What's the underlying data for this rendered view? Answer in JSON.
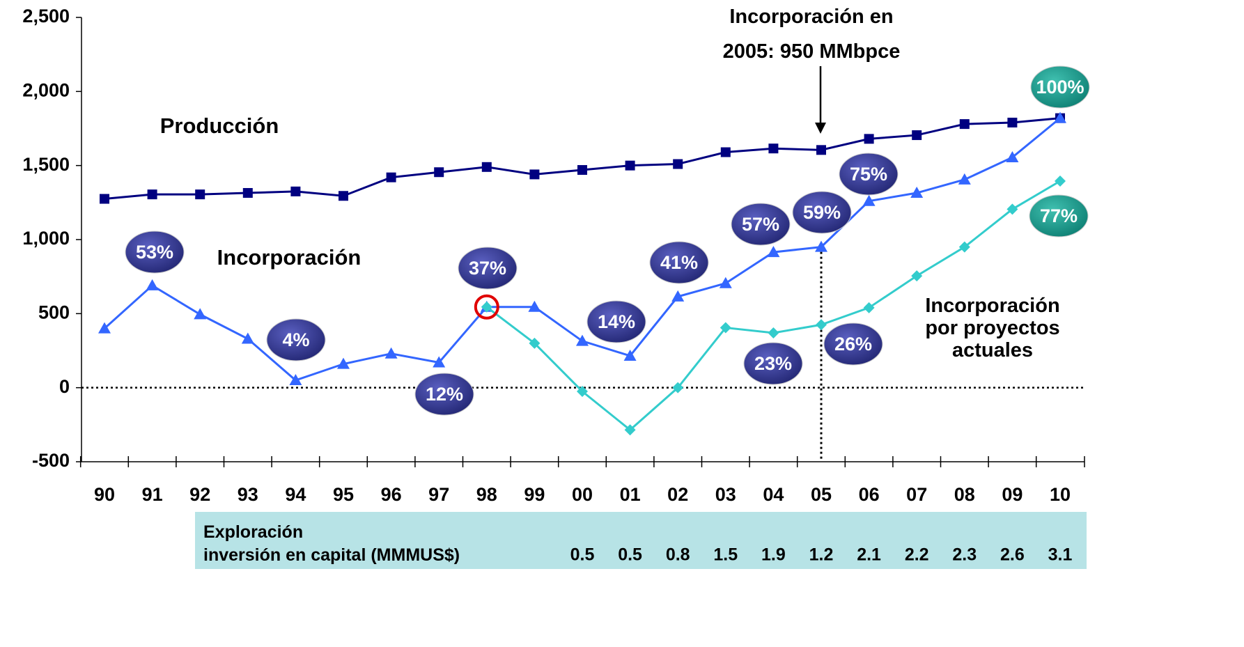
{
  "chart_data": {
    "type": "line",
    "categories": [
      "90",
      "91",
      "92",
      "93",
      "94",
      "95",
      "96",
      "97",
      "98",
      "99",
      "00",
      "01",
      "02",
      "03",
      "04",
      "05",
      "06",
      "07",
      "08",
      "09",
      "10"
    ],
    "ylim": [
      -500,
      2500
    ],
    "yticks": [
      -500,
      0,
      500,
      {
        "value": 1000,
        "label": "1,000"
      },
      {
        "value": 1500,
        "label": "1,500"
      },
      {
        "value": 2000,
        "label": "2,000"
      },
      {
        "value": 2500,
        "label": "2,500"
      }
    ],
    "series": [
      {
        "name": "Producción",
        "color": "#000080",
        "marker": "square",
        "values": [
          1275,
          1305,
          1305,
          1315,
          1325,
          1295,
          1420,
          1455,
          1490,
          1440,
          1470,
          1500,
          1510,
          1590,
          1615,
          1605,
          1680,
          1705,
          1780,
          1790,
          1820
        ]
      },
      {
        "name": "Incorporación",
        "color": "#3366ff",
        "marker": "triangle",
        "values": [
          400,
          690,
          495,
          330,
          50,
          160,
          230,
          170,
          545,
          545,
          315,
          215,
          615,
          705,
          915,
          950,
          1260,
          1315,
          1405,
          1555,
          1820
        ]
      },
      {
        "name": "Incorporación por proyectos actuales",
        "color": "#33cccc",
        "marker": "diamond",
        "values": [
          null,
          null,
          null,
          null,
          null,
          null,
          null,
          null,
          545,
          300,
          -25,
          -285,
          0,
          405,
          370,
          425,
          540,
          755,
          950,
          1205,
          1395
        ]
      }
    ],
    "annotation": "Incorporación en 2005: 950 MMbpce",
    "percent_labels": [
      "53%",
      "4%",
      "12%",
      "37%",
      "14%",
      "41%",
      "23%",
      "57%",
      "59%",
      "26%",
      "75%",
      "100%",
      "77%"
    ],
    "investment": {
      "label": "Exploración inversión en capital (MMMUS$)",
      "values": [
        0.5,
        0.5,
        0.8,
        1.5,
        1.9,
        1.2,
        2.1,
        2.2,
        2.3,
        2.6,
        3.1
      ]
    }
  }
}
